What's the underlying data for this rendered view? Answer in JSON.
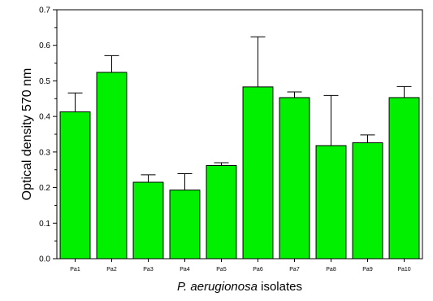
{
  "chart_data": {
    "type": "bar",
    "categories": [
      "Pa1",
      "Pa2",
      "Pa3",
      "Pa4",
      "Pa5",
      "Pa6",
      "Pa7",
      "Pa8",
      "Pa9",
      "Pa10"
    ],
    "values": [
      0.413,
      0.524,
      0.215,
      0.193,
      0.262,
      0.483,
      0.453,
      0.318,
      0.326,
      0.453
    ],
    "error_upper": [
      0.053,
      0.047,
      0.021,
      0.046,
      0.008,
      0.141,
      0.016,
      0.141,
      0.022,
      0.031
    ],
    "title": "",
    "xlabel_italic": "P. aerugionosa",
    "xlabel_rest": " isolates",
    "ylabel": "Optical density 570 nm",
    "ylim": [
      0,
      0.7
    ],
    "yticks": [
      "0.0",
      "0.1",
      "0.2",
      "0.3",
      "0.4",
      "0.5",
      "0.6",
      "0.7"
    ],
    "bar_color": "#00f000",
    "grid": false,
    "legend": "none"
  }
}
